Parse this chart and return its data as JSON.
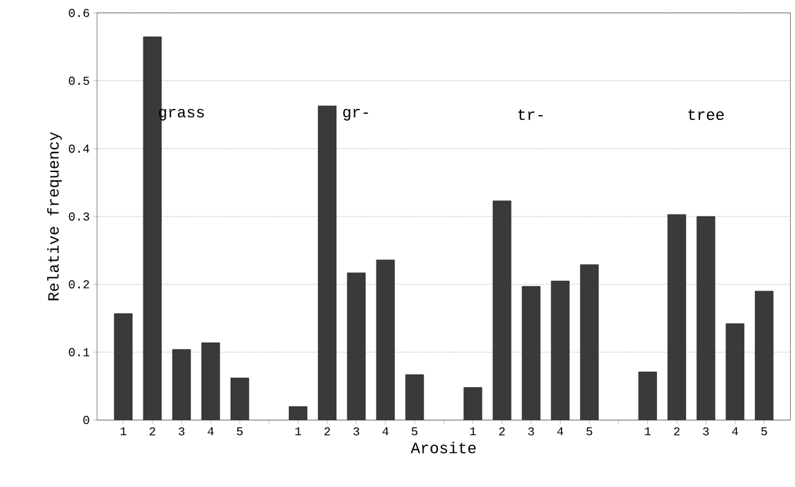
{
  "chart_data": {
    "type": "bar",
    "xlabel": "Arosite",
    "ylabel": "Relative frequency",
    "categories": [
      "1",
      "2",
      "3",
      "4",
      "5",
      null,
      "1",
      "2",
      "3",
      "4",
      "5",
      null,
      "1",
      "2",
      "3",
      "4",
      "5",
      null,
      "1",
      "2",
      "3",
      "4",
      "5"
    ],
    "values": [
      0.157,
      0.565,
      0.104,
      0.114,
      0.062,
      null,
      0.02,
      0.463,
      0.217,
      0.236,
      0.067,
      null,
      0.048,
      0.323,
      0.197,
      0.205,
      0.229,
      null,
      0.071,
      0.303,
      0.3,
      0.142,
      0.19
    ],
    "color": "#3a3a3a",
    "ylim": [
      0,
      0.6
    ],
    "yticks": [
      0,
      0.1,
      0.2,
      0.3,
      0.4,
      0.5,
      0.6
    ],
    "grid": "y",
    "annotations": [
      "grass",
      "gr-",
      "tr-",
      "tree"
    ]
  }
}
